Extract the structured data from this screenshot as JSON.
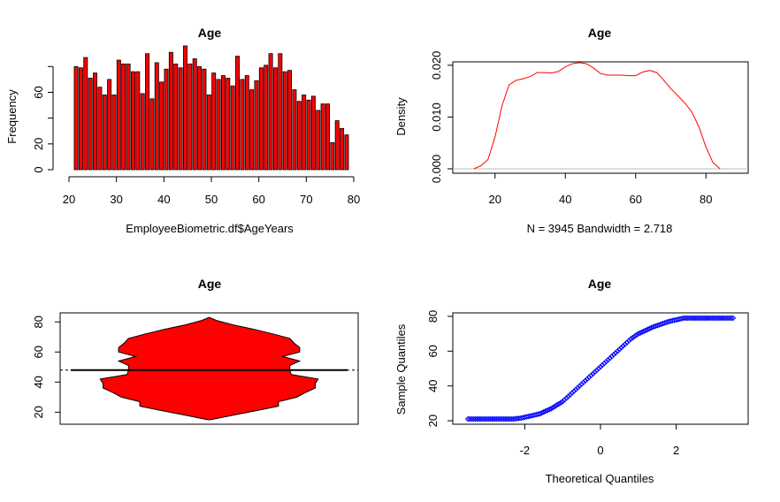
{
  "colors": {
    "hist_fill": "#ff0000",
    "density_line": "#ff0000",
    "violin_fill": "#ff0000",
    "qq_points": "#0000ff",
    "axis": "#000000",
    "zero_line": "#bebebe"
  },
  "chart_data": [
    {
      "id": "histogram",
      "type": "bar",
      "title": "Age",
      "xlabel": "EmployeeBiometric.df$AgeYears",
      "ylabel": "Frequency",
      "xlim": [
        20,
        80
      ],
      "ylim": [
        0,
        85
      ],
      "xticks": [
        20,
        30,
        40,
        50,
        60,
        70,
        80
      ],
      "yticks": [
        0,
        20,
        60
      ],
      "bin_start": 21,
      "bin_width": 1,
      "x": [
        21,
        22,
        23,
        24,
        25,
        26,
        27,
        28,
        29,
        30,
        31,
        32,
        33,
        34,
        35,
        36,
        37,
        38,
        39,
        40,
        41,
        42,
        43,
        44,
        45,
        46,
        47,
        48,
        49,
        50,
        51,
        52,
        53,
        54,
        55,
        56,
        57,
        58,
        59,
        60,
        61,
        62,
        63,
        64,
        65,
        66,
        67,
        68,
        69,
        70,
        71,
        72,
        73,
        74,
        75,
        76,
        77,
        78
      ],
      "values": [
        80,
        79,
        87,
        71,
        75,
        64,
        58,
        70,
        58,
        85,
        82,
        82,
        76,
        76,
        59,
        90,
        55,
        83,
        68,
        78,
        91,
        82,
        79,
        96,
        82,
        86,
        80,
        78,
        58,
        75,
        70,
        73,
        71,
        65,
        88,
        70,
        73,
        62,
        69,
        79,
        81,
        90,
        79,
        90,
        76,
        77,
        62,
        53,
        58,
        54,
        57,
        46,
        51,
        51,
        21,
        38,
        32,
        27
      ]
    },
    {
      "id": "density",
      "type": "line",
      "title": "Age",
      "xlabel": "N = 3945   Bandwidth = 2.718",
      "ylabel": "Density",
      "xlim": [
        10,
        90
      ],
      "ylim": [
        0,
        0.021
      ],
      "xticks": [
        20,
        40,
        60,
        80
      ],
      "yticks": [
        "0.000",
        "0.010",
        "0.020"
      ],
      "x": [
        14,
        16,
        18,
        20,
        22,
        24,
        26,
        28,
        30,
        32,
        34,
        36,
        38,
        40,
        42,
        44,
        46,
        48,
        50,
        52,
        54,
        56,
        58,
        60,
        62,
        64,
        66,
        68,
        70,
        72,
        74,
        76,
        78,
        80,
        82,
        84
      ],
      "y": [
        0.0,
        0.0006,
        0.0018,
        0.0062,
        0.0122,
        0.0162,
        0.0171,
        0.0174,
        0.0178,
        0.0186,
        0.0186,
        0.0185,
        0.0188,
        0.0197,
        0.0203,
        0.0205,
        0.0203,
        0.0195,
        0.0184,
        0.0181,
        0.0181,
        0.0181,
        0.018,
        0.018,
        0.0187,
        0.019,
        0.0186,
        0.0171,
        0.0155,
        0.0141,
        0.0127,
        0.011,
        0.0081,
        0.0042,
        0.0012,
        0.0
      ]
    },
    {
      "id": "violin",
      "type": "area",
      "title": "Age",
      "ylim": [
        12,
        86
      ],
      "yticks": [
        20,
        40,
        60,
        80
      ],
      "median": 48,
      "y": [
        15,
        18,
        21,
        24,
        27,
        30,
        33,
        36,
        39,
        42,
        45,
        48,
        51,
        54,
        57,
        60,
        63,
        66,
        69,
        72,
        75,
        78,
        81,
        83
      ],
      "half_width": [
        0.01,
        0.17,
        0.33,
        0.49,
        0.49,
        0.62,
        0.68,
        0.75,
        0.75,
        0.77,
        0.58,
        0.57,
        0.57,
        0.64,
        0.52,
        0.64,
        0.64,
        0.6,
        0.57,
        0.45,
        0.32,
        0.17,
        0.05,
        0.0
      ]
    },
    {
      "id": "qqplot",
      "type": "scatter",
      "title": "Age",
      "xlabel": "Theoretical Quantiles",
      "ylabel": "Sample Quantiles",
      "xlim": [
        -3.9,
        3.9
      ],
      "ylim": [
        18,
        82
      ],
      "xticks": [
        -2,
        0,
        2
      ],
      "yticks": [
        20,
        40,
        60,
        80
      ],
      "x": [
        -3.5,
        -3.2,
        -3.1,
        -3.0,
        -2.95,
        -2.9,
        -2.8,
        -2.6,
        -2.3,
        -2.1,
        -1.9,
        -1.6,
        -1.3,
        -1.0,
        -0.8,
        -0.6,
        -0.4,
        -0.2,
        0.0,
        0.2,
        0.4,
        0.6,
        0.8,
        1.0,
        1.2,
        1.4,
        1.6,
        1.8,
        2.0,
        2.2,
        2.4,
        2.6,
        2.8,
        3.0,
        3.2,
        3.5
      ],
      "y": [
        21,
        21,
        21,
        21,
        21,
        21,
        21,
        21,
        21,
        21.5,
        22.5,
        24,
        27,
        31,
        35,
        39,
        43,
        47,
        51,
        55,
        59,
        63,
        67,
        70,
        72,
        74,
        75.5,
        77,
        78,
        79,
        79,
        79,
        79,
        79,
        79,
        79
      ]
    }
  ]
}
